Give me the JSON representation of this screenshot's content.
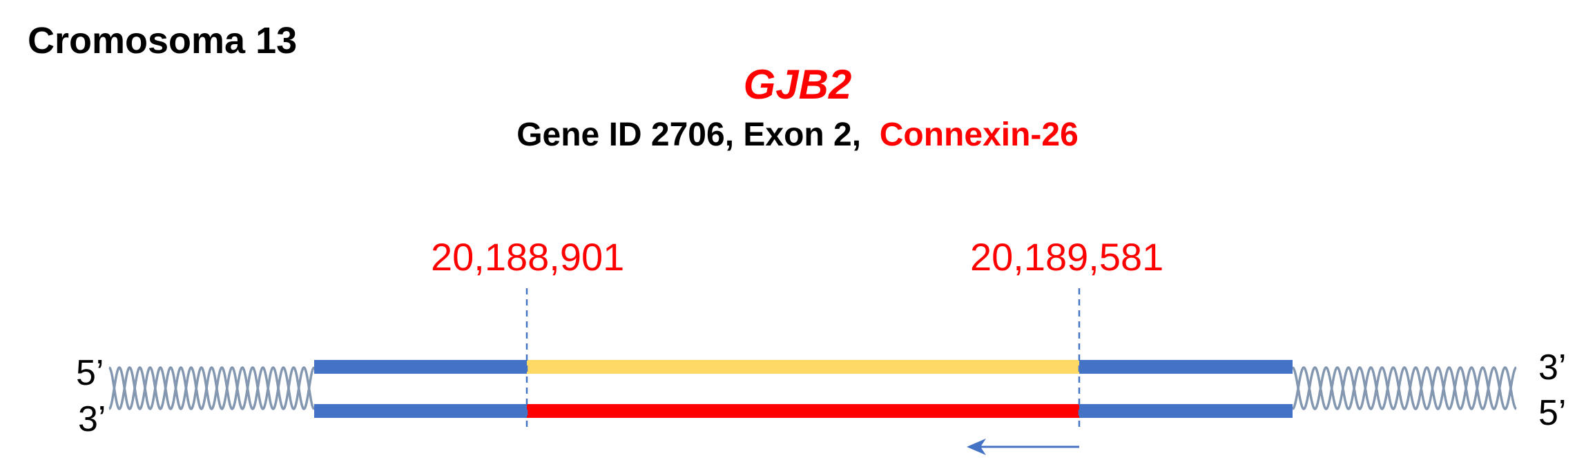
{
  "chromosome_label": "Cromosoma 13",
  "gene": {
    "symbol": "GJB2",
    "info_prefix": "Gene ID 2706, Exon 2,",
    "protein": "Connexin-26"
  },
  "coordinates": {
    "start": "20,188,901",
    "end": "20,189,581"
  },
  "strands": {
    "top": {
      "left_end": "5’",
      "right_end": "3’"
    },
    "bottom": {
      "left_end": "3’",
      "right_end": "5’"
    }
  },
  "colors": {
    "accent_red": "#ff0000",
    "strand_blue": "#4472c4",
    "exon_top": "#ffd966",
    "exon_bottom": "#ff0000",
    "helix_gray": "#8497b0",
    "arrow_blue": "#4472c4",
    "text": "#000000"
  },
  "arrow": {
    "direction": "left"
  }
}
